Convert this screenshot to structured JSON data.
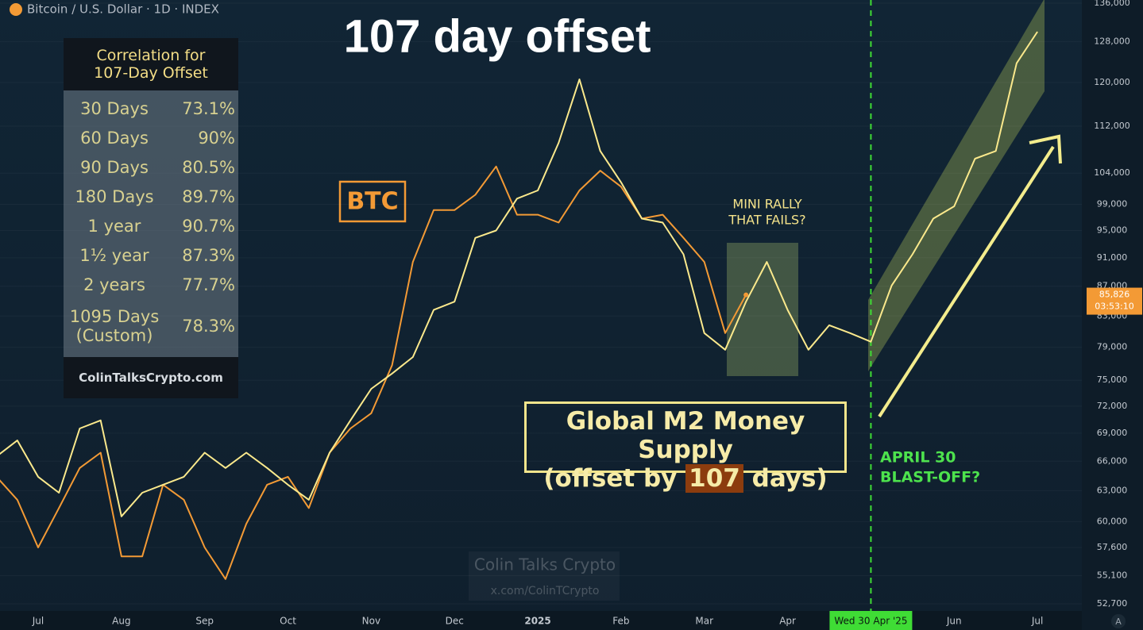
{
  "header": "Bitcoin / U.S. Dollar · 1D · INDEX",
  "chart_data": {
    "type": "line",
    "title": "107 day offset",
    "categories": [
      null,
      null,
      "Jul",
      null,
      null,
      null,
      "Aug",
      null,
      null,
      null,
      "Sep",
      null,
      null,
      null,
      "Oct",
      null,
      null,
      null,
      "Nov",
      null,
      null,
      null,
      "Dec",
      null,
      null,
      null,
      "2025",
      null,
      null,
      null,
      "Feb",
      null,
      null,
      null,
      "Mar",
      null,
      null,
      null,
      "Apr",
      null,
      null,
      null,
      "Wed 30 Apr '25",
      null,
      null,
      null,
      "Jun",
      null,
      null,
      null,
      "Jul",
      null,
      null
    ],
    "series": [
      {
        "name": "BTC",
        "color": "#f39a35",
        "values": [
          64400,
          62100,
          57600,
          61300,
          65300,
          66900,
          56800,
          56800,
          63600,
          62100,
          57600,
          54800,
          59800,
          63600,
          64400,
          61300,
          66900,
          69500,
          71200,
          76800,
          90400,
          98100,
          98100,
          100500,
          105100,
          97400,
          97400,
          96200,
          101200,
          104400,
          101800,
          96800,
          97400,
          93900,
          90400,
          80800,
          85826,
          null,
          null,
          null,
          null,
          null,
          null,
          null,
          null,
          null,
          null,
          null,
          null,
          null,
          null,
          null,
          null
        ]
      },
      {
        "name": "Global M2 Money Supply",
        "color": "#fbe98c",
        "values": [
          66500,
          68200,
          64400,
          62800,
          69500,
          70400,
          60500,
          62800,
          63600,
          64400,
          66900,
          65300,
          66900,
          65300,
          63600,
          62100,
          66900,
          70400,
          74000,
          75800,
          77800,
          83800,
          84900,
          93900,
          95000,
          99900,
          101200,
          109100,
          120600,
          107700,
          102500,
          96800,
          96200,
          91500,
          80800,
          78700,
          84900,
          90400,
          83800,
          78700,
          81800,
          80800,
          79700,
          87100,
          91500,
          96800,
          98700,
          106400,
          107700,
          123700,
          130000,
          null,
          null
        ]
      }
    ],
    "ylim": [
      52700,
      136000
    ],
    "log_scale": true,
    "grid": true,
    "marker_color": "#3fdc35",
    "yticks": [
      {
        "value": 52700,
        "label": "52,700"
      },
      {
        "value": 55100,
        "label": "55,100"
      },
      {
        "value": 57600,
        "label": "57,600"
      },
      {
        "value": 60000,
        "label": "60,000"
      },
      {
        "value": 63000,
        "label": "63,000"
      },
      {
        "value": 66000,
        "label": "66,000"
      },
      {
        "value": 69000,
        "label": "69,000"
      },
      {
        "value": 72000,
        "label": "72,000"
      },
      {
        "value": 75000,
        "label": "75,000"
      },
      {
        "value": 79000,
        "label": "79,000"
      },
      {
        "value": 83000,
        "label": "83,000"
      },
      {
        "value": 87000,
        "label": "87,000"
      },
      {
        "value": 91000,
        "label": "91,000"
      },
      {
        "value": 95000,
        "label": "95,000"
      },
      {
        "value": 99000,
        "label": "99,000"
      },
      {
        "value": 104000,
        "label": "104,000"
      },
      {
        "value": 112000,
        "label": "112,000"
      },
      {
        "value": 120000,
        "label": "120,000"
      },
      {
        "value": 128000,
        "label": "128,000"
      },
      {
        "value": 136000,
        "label": "136,000"
      }
    ]
  },
  "correlation_table": {
    "title": [
      "Correlation for",
      "107-Day Offset"
    ],
    "rows": [
      [
        "30 Days",
        "73.1%"
      ],
      [
        "60 Days",
        "90%"
      ],
      [
        "90 Days",
        "80.5%"
      ],
      [
        "180 Days",
        "89.7%"
      ],
      [
        "1 year",
        "90.7%"
      ],
      [
        "1½ year",
        "87.3%"
      ],
      [
        "2 years",
        "77.7%"
      ],
      [
        "1095 Days (Custom)",
        "78.3%"
      ]
    ],
    "footer": "ColinTalksCrypto.com"
  },
  "annotations": {
    "mini_rally": [
      "MINI RALLY",
      "THAT FAILS?"
    ],
    "m2_offset": {
      "pre": "(offset by ",
      "num": "107",
      "post": " days)"
    },
    "blast_off": [
      "APRIL 30",
      "BLAST-OFF?"
    ],
    "watermark": "Colin Talks Crypto",
    "watermark_handle": "x.com/ColinTCrypto",
    "price_tag": "85,826",
    "countdown": "03:53:10",
    "corner": "A"
  }
}
